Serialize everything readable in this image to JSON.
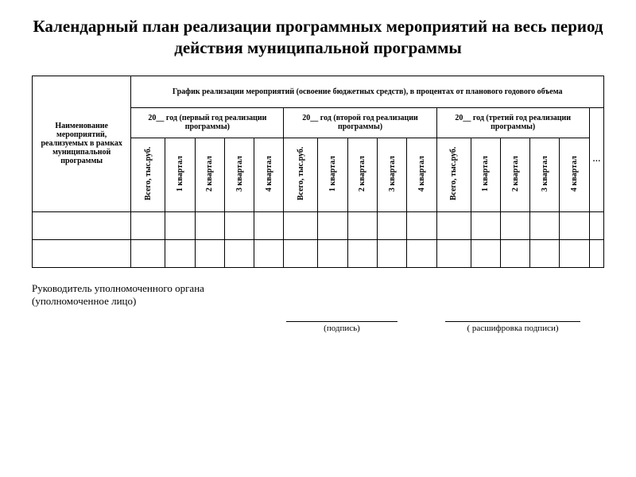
{
  "title": "Календарный план реализации программных мероприятий на весь период действия муниципальной программы",
  "table": {
    "col_name_header": "Наименование мероприятий, реализуемых в рамках муниципальной программы",
    "top_header": "График реализации мероприятий  (освоение бюджетных средств), в процентах от планового годового объема",
    "year1_header": "20__ год (первый год реализации программы)",
    "year2_header": "20__ год (второй год реализации программы)",
    "year3_header": "20__ год (третий год реализации программы)",
    "ellipsis": "…",
    "total_label": "Всего, тыс.руб.",
    "q1_label": "1 квартал",
    "q2_label": "2 квартал",
    "q3_label": "3 квартал",
    "q4_label": "4 квартал",
    "border_color": "#000000",
    "background_color": "#ffffff",
    "header_fontsize": 10,
    "vertical_fontsize": 10,
    "empty_rows": 2
  },
  "signature": {
    "role_line1": "Руководитель уполномоченного органа",
    "role_line2": "(уполномоченное лицо)",
    "sig_label": "(подпись)",
    "name_label": "( расшифровка подписи)"
  },
  "style": {
    "title_fontsize": 21,
    "body_font": "Times New Roman",
    "text_color": "#000000",
    "page_bg": "#ffffff"
  }
}
